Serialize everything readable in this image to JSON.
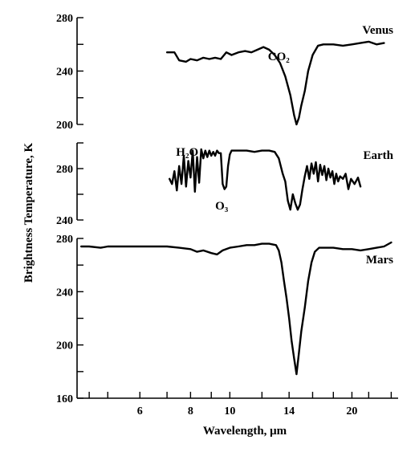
{
  "chart_data": {
    "type": "line",
    "xlabel": "Wavelength, μm",
    "ylabel": "Brightness Temperature, K",
    "x_scale": "log",
    "xlim": [
      4.2,
      26
    ],
    "x_ticks": [
      {
        "value": 4.5,
        "label": ""
      },
      {
        "value": 5,
        "label": ""
      },
      {
        "value": 6,
        "label": "6"
      },
      {
        "value": 7,
        "label": ""
      },
      {
        "value": 8,
        "label": "8"
      },
      {
        "value": 9,
        "label": ""
      },
      {
        "value": 10,
        "label": "10"
      },
      {
        "value": 12,
        "label": ""
      },
      {
        "value": 14,
        "label": "14"
      },
      {
        "value": 16,
        "label": ""
      },
      {
        "value": 18,
        "label": ""
      },
      {
        "value": 20,
        "label": "20"
      },
      {
        "value": 22,
        "label": ""
      },
      {
        "value": 25,
        "label": ""
      }
    ],
    "panels": [
      {
        "name": "Venus",
        "ylim": [
          200,
          280
        ],
        "y_ticks": [
          200,
          240,
          280
        ],
        "y_minor": [
          220,
          260
        ],
        "annotations": [
          {
            "text": "CO₂",
            "x": 13.2,
            "y": 248
          }
        ],
        "points": [
          [
            7,
            254
          ],
          [
            7.3,
            254
          ],
          [
            7.5,
            248
          ],
          [
            7.8,
            247
          ],
          [
            8,
            249
          ],
          [
            8.3,
            248
          ],
          [
            8.6,
            250
          ],
          [
            8.9,
            249
          ],
          [
            9.2,
            250
          ],
          [
            9.5,
            249
          ],
          [
            9.8,
            254
          ],
          [
            10.1,
            252
          ],
          [
            10.5,
            254
          ],
          [
            10.9,
            255
          ],
          [
            11.3,
            254
          ],
          [
            11.7,
            256
          ],
          [
            12.1,
            258
          ],
          [
            12.5,
            256
          ],
          [
            12.9,
            252
          ],
          [
            13.3,
            246
          ],
          [
            13.7,
            236
          ],
          [
            14.1,
            222
          ],
          [
            14.4,
            207
          ],
          [
            14.6,
            200
          ],
          [
            14.8,
            205
          ],
          [
            15,
            214
          ],
          [
            15.3,
            225
          ],
          [
            15.6,
            240
          ],
          [
            16,
            252
          ],
          [
            16.5,
            259
          ],
          [
            17,
            260
          ],
          [
            18,
            260
          ],
          [
            19,
            259
          ],
          [
            20,
            260
          ],
          [
            21,
            261
          ],
          [
            22,
            262
          ],
          [
            23,
            260
          ],
          [
            24,
            261
          ]
        ]
      },
      {
        "name": "Earth",
        "ylim": [
          240,
          300
        ],
        "y_ticks": [
          240,
          280
        ],
        "y_minor": [
          260,
          300
        ],
        "annotations": [
          {
            "text": "H₂O",
            "x": 7.85,
            "y": 290
          },
          {
            "text": "O₃",
            "x": 9.55,
            "y": 248
          }
        ],
        "points": [
          [
            7.1,
            272
          ],
          [
            7.2,
            268
          ],
          [
            7.3,
            278
          ],
          [
            7.4,
            263
          ],
          [
            7.5,
            282
          ],
          [
            7.6,
            268
          ],
          [
            7.7,
            290
          ],
          [
            7.8,
            266
          ],
          [
            7.9,
            286
          ],
          [
            8,
            273
          ],
          [
            8.1,
            294
          ],
          [
            8.2,
            262
          ],
          [
            8.3,
            289
          ],
          [
            8.4,
            269
          ],
          [
            8.5,
            295
          ],
          [
            8.6,
            288
          ],
          [
            8.7,
            294
          ],
          [
            8.8,
            289
          ],
          [
            8.9,
            294
          ],
          [
            9,
            290
          ],
          [
            9.1,
            293
          ],
          [
            9.2,
            290
          ],
          [
            9.3,
            294
          ],
          [
            9.4,
            292
          ],
          [
            9.5,
            292
          ],
          [
            9.6,
            268
          ],
          [
            9.7,
            264
          ],
          [
            9.8,
            266
          ],
          [
            9.9,
            282
          ],
          [
            10,
            291
          ],
          [
            10.1,
            294
          ],
          [
            10.5,
            294
          ],
          [
            11,
            294
          ],
          [
            11.5,
            293
          ],
          [
            12,
            294
          ],
          [
            12.5,
            294
          ],
          [
            12.9,
            293
          ],
          [
            13.2,
            288
          ],
          [
            13.5,
            276
          ],
          [
            13.7,
            270
          ],
          [
            13.9,
            255
          ],
          [
            14.1,
            248
          ],
          [
            14.3,
            260
          ],
          [
            14.5,
            253
          ],
          [
            14.7,
            248
          ],
          [
            14.9,
            252
          ],
          [
            15.1,
            264
          ],
          [
            15.3,
            274
          ],
          [
            15.5,
            282
          ],
          [
            15.7,
            272
          ],
          [
            15.9,
            284
          ],
          [
            16.1,
            276
          ],
          [
            16.3,
            285
          ],
          [
            16.5,
            270
          ],
          [
            16.7,
            283
          ],
          [
            16.9,
            275
          ],
          [
            17.1,
            282
          ],
          [
            17.3,
            271
          ],
          [
            17.5,
            280
          ],
          [
            17.7,
            273
          ],
          [
            17.9,
            278
          ],
          [
            18.1,
            268
          ],
          [
            18.3,
            276
          ],
          [
            18.5,
            270
          ],
          [
            18.7,
            274
          ],
          [
            19,
            272
          ],
          [
            19.3,
            276
          ],
          [
            19.6,
            264
          ],
          [
            19.9,
            272
          ],
          [
            20.3,
            268
          ],
          [
            20.7,
            273
          ],
          [
            21,
            266
          ]
        ]
      },
      {
        "name": "Mars",
        "ylim": [
          160,
          280
        ],
        "y_ticks": [
          160,
          200,
          240,
          280
        ],
        "y_minor": [
          180,
          220,
          260
        ],
        "annotations": [],
        "points": [
          [
            4.3,
            274
          ],
          [
            4.5,
            274
          ],
          [
            4.8,
            273
          ],
          [
            5,
            274
          ],
          [
            5.5,
            274
          ],
          [
            6,
            274
          ],
          [
            6.5,
            274
          ],
          [
            7,
            274
          ],
          [
            7.5,
            273
          ],
          [
            8,
            272
          ],
          [
            8.3,
            270
          ],
          [
            8.6,
            271
          ],
          [
            9,
            269
          ],
          [
            9.3,
            268
          ],
          [
            9.6,
            271
          ],
          [
            10,
            273
          ],
          [
            10.5,
            274
          ],
          [
            11,
            275
          ],
          [
            11.5,
            275
          ],
          [
            12,
            276
          ],
          [
            12.5,
            276
          ],
          [
            13,
            275
          ],
          [
            13.2,
            271
          ],
          [
            13.4,
            262
          ],
          [
            13.6,
            248
          ],
          [
            13.8,
            235
          ],
          [
            14,
            220
          ],
          [
            14.2,
            203
          ],
          [
            14.4,
            190
          ],
          [
            14.6,
            178
          ],
          [
            14.8,
            194
          ],
          [
            15,
            210
          ],
          [
            15.3,
            228
          ],
          [
            15.6,
            248
          ],
          [
            15.9,
            262
          ],
          [
            16.2,
            270
          ],
          [
            16.6,
            273
          ],
          [
            17,
            273
          ],
          [
            18,
            273
          ],
          [
            19,
            272
          ],
          [
            20,
            272
          ],
          [
            21,
            271
          ],
          [
            22,
            272
          ],
          [
            23,
            273
          ],
          [
            24,
            274
          ],
          [
            25,
            277
          ]
        ]
      }
    ]
  }
}
